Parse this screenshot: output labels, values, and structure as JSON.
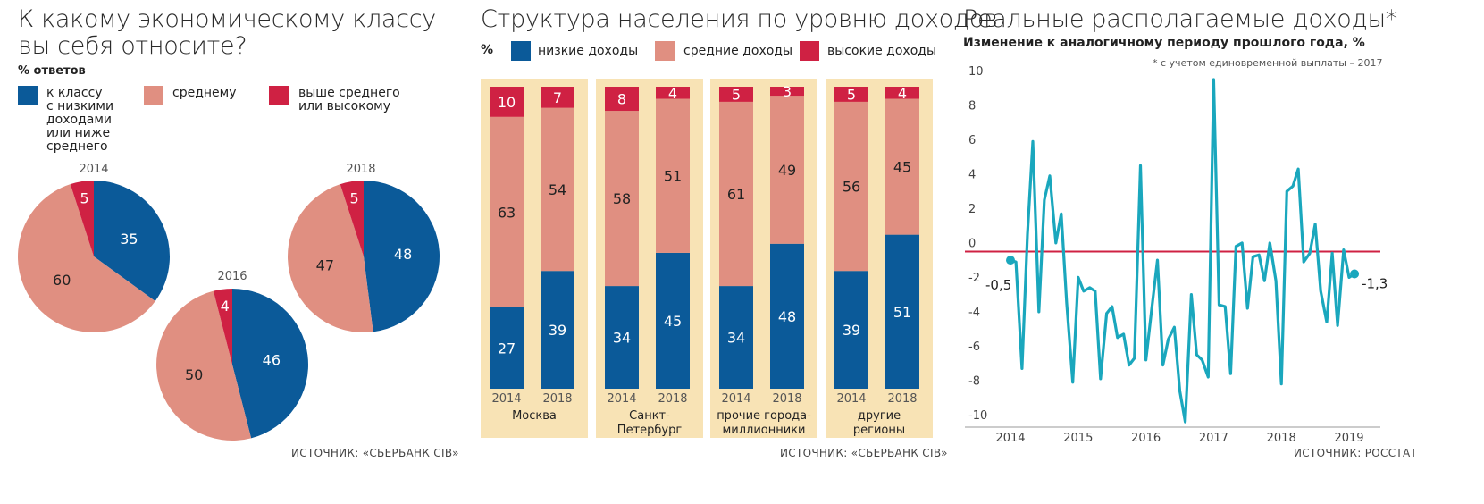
{
  "colors": {
    "low": "#0b5a99",
    "mid": "#e08f81",
    "high": "#cf2143",
    "panel_bg": "#f8e3b5",
    "line": "#1aa7bd",
    "zero": "#cf2143"
  },
  "panel1": {
    "title_line1": "К какому экономическому классу",
    "title_line2": "вы себя относите?",
    "unit": "% ответов",
    "legend": [
      {
        "lines": [
          "к классу",
          "с низкими",
          "доходами",
          "или ниже",
          "среднего"
        ]
      },
      {
        "lines": [
          "среднему"
        ]
      },
      {
        "lines": [
          "выше среднего",
          "или высокому"
        ]
      }
    ],
    "source": "ИСТОЧНИК: «СБЕРБАНК CIB»"
  },
  "panel2": {
    "title": "Структура населения по уровню доходов",
    "unit": "%",
    "legend": [
      "низкие доходы",
      "средние доходы",
      "высокие доходы"
    ],
    "source": "ИСТОЧНИК: «СБЕРБАНК CIB»"
  },
  "panel3": {
    "title": "Реальные располагаемые доходы*",
    "subtitle": "Изменение к аналогичному периоду прошлого года, %",
    "note": "* с учетом единовременной выплаты – 2017",
    "source": "ИСТОЧНИК: РОССТАТ"
  },
  "chart_data": [
    {
      "type": "pie",
      "categories": [
        "к классу с низкими доходами или ниже среднего",
        "среднему",
        "выше среднего или высокому"
      ],
      "pies": [
        {
          "label": "2014",
          "values": [
            35,
            60,
            5
          ]
        },
        {
          "label": "2016",
          "values": [
            46,
            50,
            4
          ]
        },
        {
          "label": "2018",
          "values": [
            48,
            47,
            5
          ]
        }
      ]
    },
    {
      "type": "bar",
      "stacked": true,
      "ylabel": "%",
      "groups": [
        {
          "name": "Москва",
          "name_lines": [
            "Москва"
          ],
          "years": [
            "2014",
            "2018"
          ]
        },
        {
          "name": "Санкт-Петербург",
          "name_lines": [
            "Санкт-",
            "Петербург"
          ],
          "years": [
            "2014",
            "2018"
          ]
        },
        {
          "name": "прочие города-миллионники",
          "name_lines": [
            "прочие города-",
            "миллионники"
          ],
          "years": [
            "2014",
            "2018"
          ]
        },
        {
          "name": "другие регионы",
          "name_lines": [
            "другие",
            "регионы"
          ],
          "years": [
            "2014",
            "2018"
          ]
        }
      ],
      "series": [
        {
          "name": "низкие доходы",
          "values": [
            [
              27,
              39
            ],
            [
              34,
              45
            ],
            [
              34,
              48
            ],
            [
              39,
              51
            ]
          ]
        },
        {
          "name": "средние доходы",
          "values": [
            [
              63,
              54
            ],
            [
              58,
              51
            ],
            [
              61,
              49
            ],
            [
              56,
              45
            ]
          ]
        },
        {
          "name": "высокие доходы",
          "values": [
            [
              10,
              7
            ],
            [
              8,
              4
            ],
            [
              5,
              3
            ],
            [
              5,
              4
            ]
          ]
        }
      ]
    },
    {
      "type": "line",
      "ylim": [
        -10,
        10
      ],
      "yticks": [
        "10",
        "8",
        "6",
        "4",
        "2",
        "0",
        "-2",
        "-4",
        "-6",
        "-8",
        "-10"
      ],
      "xticks": [
        "2014",
        "2015",
        "2016",
        "2017",
        "2018",
        "2019"
      ],
      "xlim": [
        2013.97,
        2019.23
      ],
      "grid": false,
      "start_label": "-0,5",
      "end_label": "-1,3",
      "points": [
        [
          2014.0,
          -0.5
        ],
        [
          2014.08,
          -0.6
        ],
        [
          2014.17,
          -6.8
        ],
        [
          2014.25,
          1.0
        ],
        [
          2014.33,
          6.4
        ],
        [
          2014.42,
          -3.5
        ],
        [
          2014.5,
          3.0
        ],
        [
          2014.58,
          4.4
        ],
        [
          2014.67,
          0.5
        ],
        [
          2014.75,
          2.2
        ],
        [
          2014.83,
          -3.0
        ],
        [
          2014.92,
          -7.6
        ],
        [
          2015.0,
          -1.5
        ],
        [
          2015.08,
          -2.3
        ],
        [
          2015.17,
          -2.1
        ],
        [
          2015.25,
          -2.3
        ],
        [
          2015.33,
          -7.4
        ],
        [
          2015.42,
          -3.6
        ],
        [
          2015.5,
          -3.2
        ],
        [
          2015.58,
          -5.0
        ],
        [
          2015.67,
          -4.8
        ],
        [
          2015.75,
          -6.6
        ],
        [
          2015.83,
          -6.2
        ],
        [
          2015.92,
          5.0
        ],
        [
          2016.0,
          -6.3
        ],
        [
          2016.08,
          -3.5
        ],
        [
          2016.17,
          -0.5
        ],
        [
          2016.25,
          -6.6
        ],
        [
          2016.33,
          -5.1
        ],
        [
          2016.42,
          -4.4
        ],
        [
          2016.5,
          -8.1
        ],
        [
          2016.58,
          -9.9
        ],
        [
          2016.67,
          -2.5
        ],
        [
          2016.75,
          -6.0
        ],
        [
          2016.83,
          -6.3
        ],
        [
          2016.92,
          -7.3
        ],
        [
          2017.0,
          10.0
        ],
        [
          2017.08,
          -3.1
        ],
        [
          2017.17,
          -3.2
        ],
        [
          2017.25,
          -7.1
        ],
        [
          2017.33,
          0.3
        ],
        [
          2017.42,
          0.5
        ],
        [
          2017.5,
          -3.3
        ],
        [
          2017.58,
          -0.3
        ],
        [
          2017.67,
          -0.2
        ],
        [
          2017.75,
          -1.7
        ],
        [
          2017.83,
          0.5
        ],
        [
          2017.92,
          -1.7
        ],
        [
          2018.0,
          -7.7
        ],
        [
          2018.08,
          3.5
        ],
        [
          2018.17,
          3.8
        ],
        [
          2018.25,
          4.8
        ],
        [
          2018.33,
          -0.6
        ],
        [
          2018.42,
          -0.1
        ],
        [
          2018.5,
          1.6
        ],
        [
          2018.58,
          -2.3
        ],
        [
          2018.67,
          -4.1
        ],
        [
          2018.75,
          -0.1
        ],
        [
          2018.83,
          -4.3
        ],
        [
          2018.92,
          0.1
        ],
        [
          2019.0,
          -1.5
        ],
        [
          2019.08,
          -1.3
        ]
      ]
    }
  ]
}
